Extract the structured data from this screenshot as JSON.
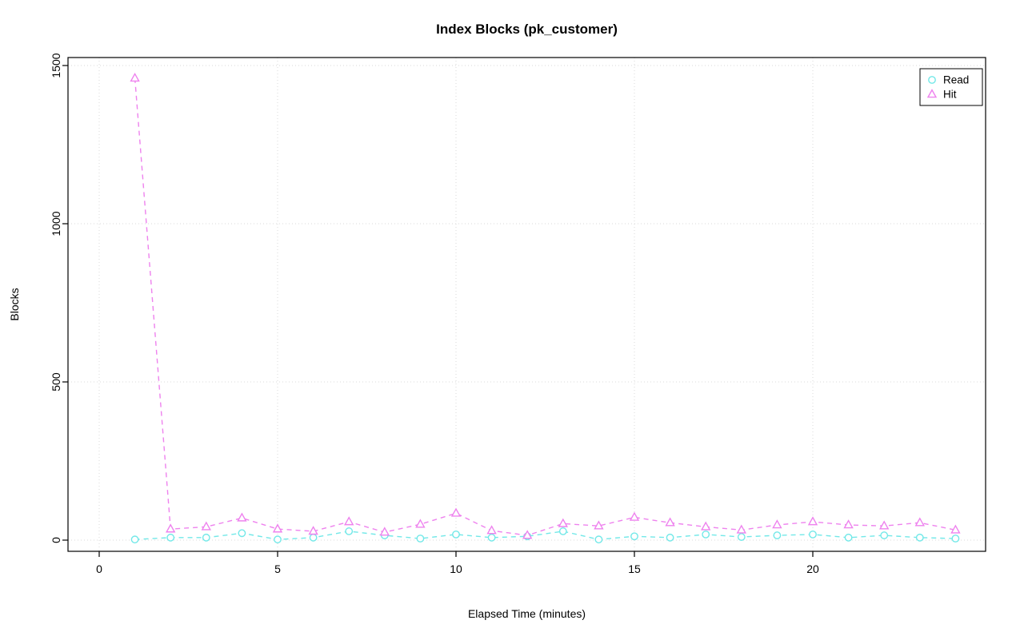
{
  "chart_data": {
    "type": "line",
    "title": "Index Blocks (pk_customer)",
    "xlabel": "Elapsed Time (minutes)",
    "ylabel": "Blocks",
    "xlim": [
      0,
      24
    ],
    "ylim": [
      0,
      1500
    ],
    "xticks": [
      0,
      5,
      10,
      15,
      20
    ],
    "yticks": [
      0,
      500,
      1000,
      1500
    ],
    "grid": true,
    "grid_style": "dotted",
    "legend_position": "top-right",
    "line_style": "dashed",
    "x": [
      1,
      2,
      3,
      4,
      5,
      6,
      7,
      8,
      9,
      10,
      11,
      12,
      13,
      14,
      15,
      16,
      17,
      18,
      19,
      20,
      21,
      22,
      23,
      24
    ],
    "series": [
      {
        "name": "Read",
        "color": "#72E8E8",
        "marker": "circle",
        "values": [
          2,
          8,
          8,
          22,
          2,
          8,
          28,
          15,
          5,
          18,
          8,
          12,
          28,
          2,
          12,
          8,
          18,
          10,
          15,
          18,
          8,
          15,
          8,
          5
        ]
      },
      {
        "name": "Hit",
        "color": "#EE82EE",
        "marker": "triangle",
        "values": [
          1460,
          35,
          42,
          70,
          35,
          28,
          58,
          25,
          50,
          85,
          30,
          15,
          52,
          45,
          72,
          55,
          42,
          32,
          48,
          58,
          48,
          45,
          55,
          32
        ]
      }
    ]
  }
}
